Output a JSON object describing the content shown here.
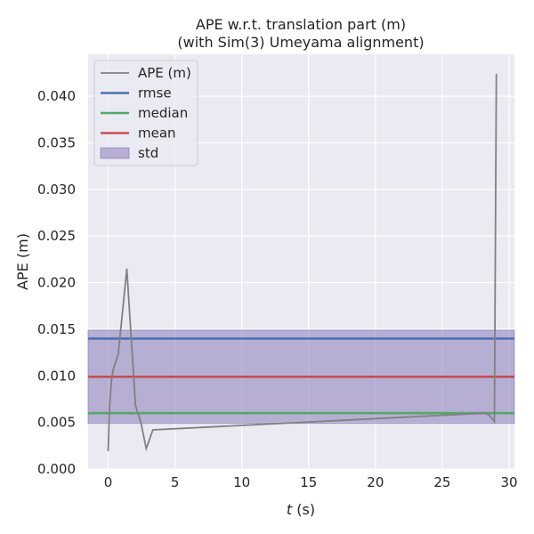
{
  "chart_data": {
    "type": "line",
    "title": "APE w.r.t. translation part (m)",
    "subtitle": "(with Sim(3) Umeyama alignment)",
    "xlabel_var": "t",
    "xlabel_unit": " (s)",
    "ylabel": "APE (m)",
    "xlim": [
      -1.5,
      30.4
    ],
    "ylim": [
      0.0,
      0.0445
    ],
    "xticks": [
      0,
      5,
      10,
      15,
      20,
      25,
      30
    ],
    "xtick_labels": [
      "0",
      "5",
      "10",
      "15",
      "20",
      "25",
      "30"
    ],
    "yticks": [
      0.0,
      0.005,
      0.01,
      0.015,
      0.02,
      0.025,
      0.03,
      0.035,
      0.04
    ],
    "ytick_labels": [
      "0.000",
      "0.005",
      "0.010",
      "0.015",
      "0.020",
      "0.025",
      "0.030",
      "0.035",
      "0.040"
    ],
    "grid": true,
    "legend_placement": "top-left",
    "background": "#eaeaf2",
    "series": [
      {
        "name": "APE (m)",
        "color": "#808080",
        "x": [
          0.0,
          0.1,
          0.25,
          0.4,
          0.75,
          1.05,
          1.4,
          1.75,
          2.05,
          2.45,
          2.85,
          3.35,
          28.2,
          28.5,
          28.9,
          29.05
        ],
        "y": [
          0.0019,
          0.0065,
          0.0095,
          0.0108,
          0.0123,
          0.0165,
          0.0215,
          0.0135,
          0.0068,
          0.005,
          0.0022,
          0.0042,
          0.006,
          0.0058,
          0.0051,
          0.0424
        ]
      }
    ],
    "stats": [
      {
        "name": "rmse",
        "value": 0.014,
        "color": "#4c72b0"
      },
      {
        "name": "median",
        "value": 0.006,
        "color": "#55a868"
      },
      {
        "name": "mean",
        "value": 0.0099,
        "color": "#c44e52"
      }
    ],
    "std_band": {
      "name": "std",
      "low": 0.0049,
      "high": 0.0149,
      "color": "#8172b3"
    }
  }
}
